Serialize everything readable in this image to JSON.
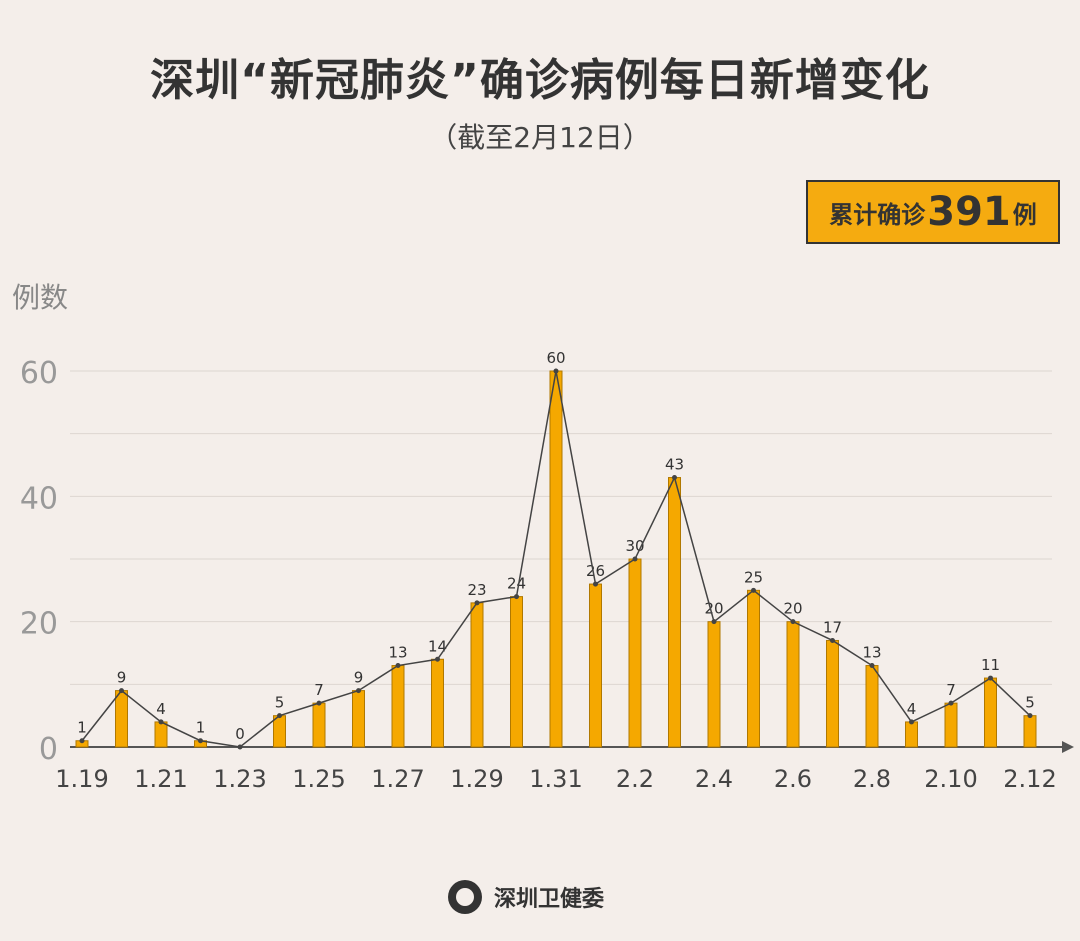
{
  "title": "深圳“新冠肺炎”确诊病例每日新增变化",
  "subtitle": "（截至2月12日）",
  "badge": {
    "prefix": "累计确诊",
    "number": "391",
    "suffix": "例",
    "color": "#f5ab10"
  },
  "footer": {
    "org": "深圳卫健委"
  },
  "chart_data": {
    "type": "bar",
    "overlay": "line",
    "ylabel": "例数",
    "ylim": [
      0,
      60
    ],
    "yticks": [
      0,
      20,
      40,
      60
    ],
    "grid_step": 10,
    "grid": true,
    "bar_color": "#f5a800",
    "line_color": "#444444",
    "categories": [
      "1.19",
      "1.20",
      "1.21",
      "1.22",
      "1.23",
      "1.24",
      "1.25",
      "1.26",
      "1.27",
      "1.28",
      "1.29",
      "1.30",
      "1.31",
      "2.1",
      "2.2",
      "2.3",
      "2.4",
      "2.5",
      "2.6",
      "2.7",
      "2.8",
      "2.9",
      "2.10",
      "2.11",
      "2.12"
    ],
    "xtick_labels": [
      "1.19",
      "1.21",
      "1.23",
      "1.25",
      "1.27",
      "1.29",
      "1.31",
      "2.2",
      "2.4",
      "2.6",
      "2.8",
      "2.10",
      "2.12"
    ],
    "values": [
      1,
      9,
      4,
      1,
      0,
      5,
      7,
      9,
      13,
      14,
      23,
      24,
      60,
      26,
      30,
      43,
      20,
      25,
      20,
      17,
      13,
      4,
      7,
      11,
      5
    ]
  }
}
